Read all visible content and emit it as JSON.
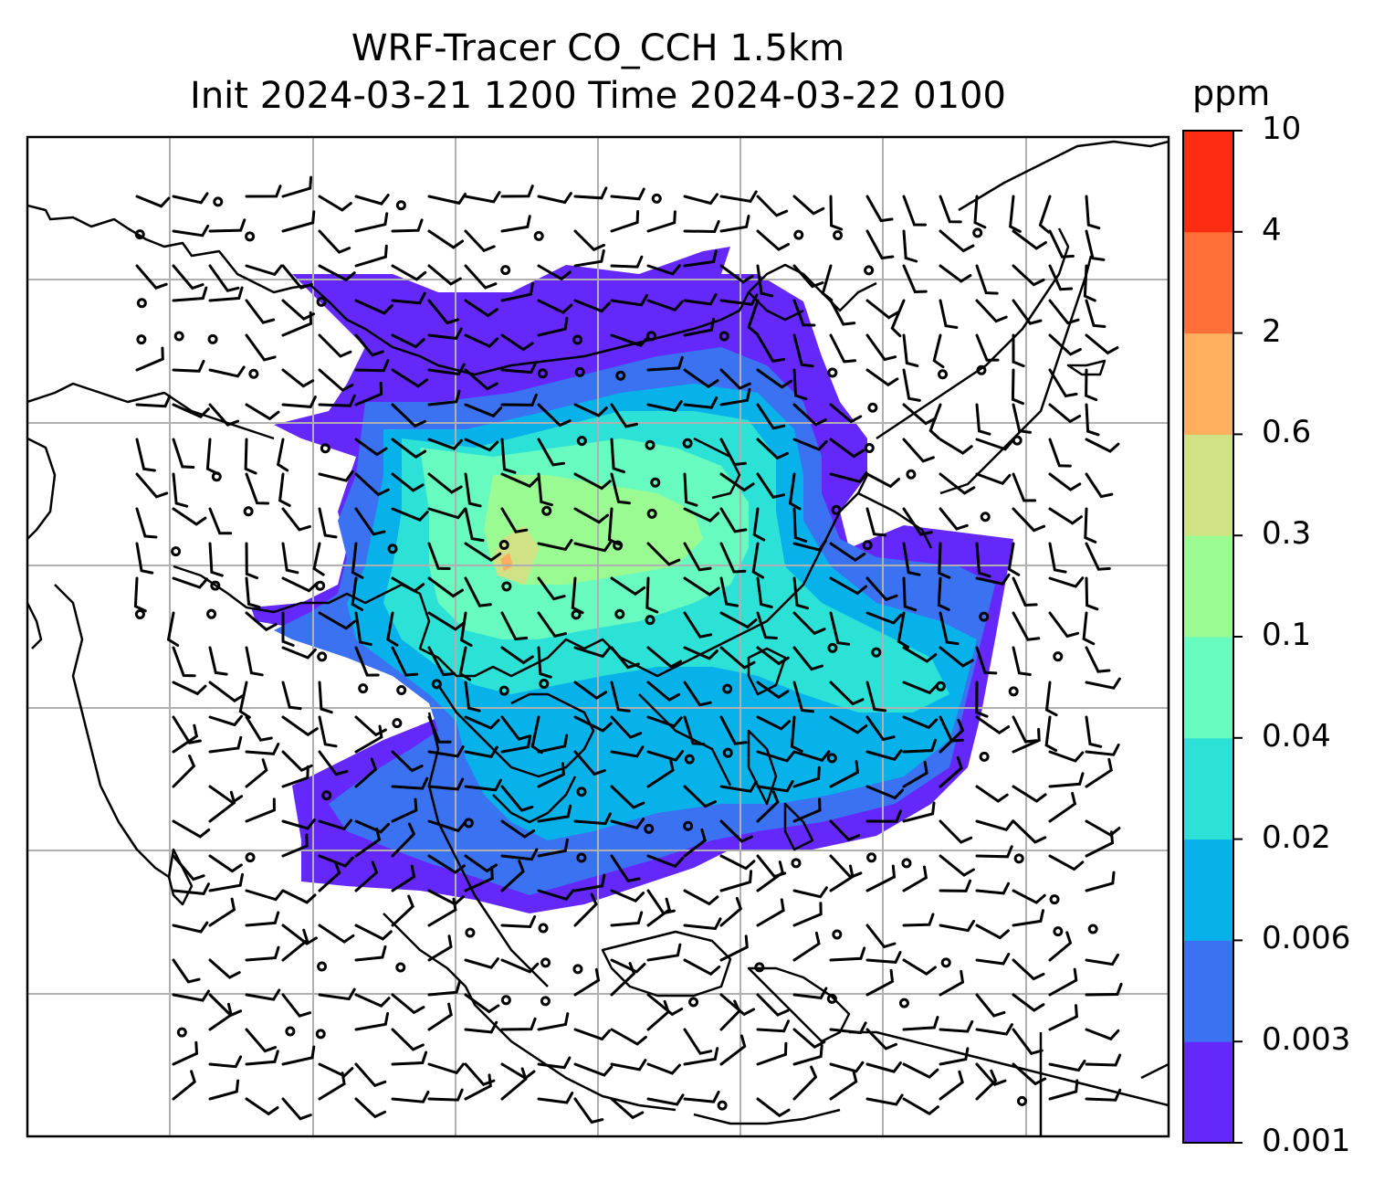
{
  "title": {
    "line1": "WRF-Tracer CO_CCH 1.5km",
    "line2": "Init 2024-03-21 1200 Time 2024-03-22 0100"
  },
  "colorbar": {
    "unit": "ppm",
    "levels": [
      "0.001",
      "0.003",
      "0.006",
      "0.02",
      "0.04",
      "0.1",
      "0.3",
      "0.6",
      "2",
      "4",
      "10"
    ],
    "colors": [
      "#6528fa",
      "#3a72f2",
      "#07b2eb",
      "#2ce2d6",
      "#68fbbf",
      "#9afb92",
      "#d0e285",
      "#ffaf5d",
      "#ff7038",
      "#ff2c14"
    ]
  },
  "map": {
    "gridlines": true,
    "wind_barbs": true,
    "colors": {
      "frame": "#000000",
      "grid": "#b0b0b0",
      "coast": "#000000"
    }
  }
}
